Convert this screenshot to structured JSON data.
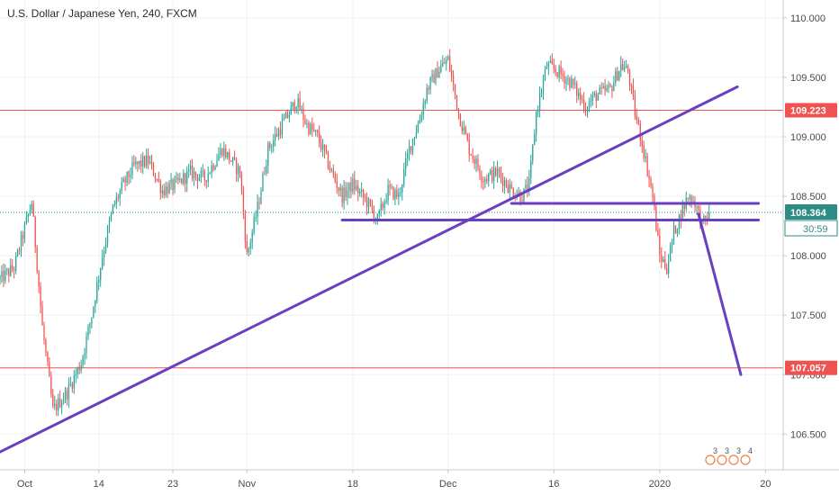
{
  "chart_data": {
    "type": "candlestick",
    "title": "U.S. Dollar / Japanese Yen, 240, FXCM",
    "x_tick_labels": [
      "Oct",
      "14",
      "23",
      "Nov",
      "18",
      "Dec",
      "16",
      "2020",
      "20"
    ],
    "x_tick_positions": [
      7,
      28,
      49,
      70,
      100,
      127,
      157,
      187,
      217
    ],
    "y_tick_labels": [
      "110.000",
      "109.500",
      "109.000",
      "108.500",
      "108.000",
      "107.500",
      "107.000",
      "106.500"
    ],
    "y_tick_values": [
      110.0,
      109.5,
      109.0,
      108.5,
      108.0,
      107.5,
      107.0,
      106.5
    ],
    "ylim": [
      106.2,
      110.15
    ],
    "xlim": [
      0,
      222
    ],
    "grid": true,
    "colors": {
      "up": "#26a69a",
      "down": "#ef5350",
      "trendline": "#6a3fc0",
      "level": "#f05252",
      "price_tag": "#2d8c86",
      "countdown_tag": "#2d8c86",
      "level_tag": "#f05252"
    },
    "horizontal_levels": [
      {
        "value": 109.223,
        "label": "109.223"
      },
      {
        "value": 107.057,
        "label": "107.057"
      }
    ],
    "current_price": {
      "value": 108.364,
      "label": "108.364",
      "countdown": "30:59"
    },
    "drawn_lines": [
      {
        "from": [
          0,
          106.35
        ],
        "to": [
          209,
          109.42
        ]
      },
      {
        "from": [
          97,
          108.3
        ],
        "to": [
          215,
          108.3
        ]
      },
      {
        "from": [
          145,
          108.44
        ],
        "to": [
          215,
          108.44
        ]
      },
      {
        "from": [
          198,
          108.35
        ],
        "to": [
          210,
          107.0
        ]
      }
    ],
    "events": [
      "3",
      "3",
      "3",
      "4"
    ],
    "anchors": [
      [
        0,
        107.8
      ],
      [
        4,
        107.9
      ],
      [
        9,
        108.45
      ],
      [
        12,
        107.4
      ],
      [
        15,
        106.7
      ],
      [
        19,
        106.85
      ],
      [
        23,
        107.1
      ],
      [
        26,
        107.5
      ],
      [
        29,
        108.0
      ],
      [
        32,
        108.4
      ],
      [
        35,
        108.6
      ],
      [
        38,
        108.75
      ],
      [
        42,
        108.8
      ],
      [
        46,
        108.55
      ],
      [
        50,
        108.6
      ],
      [
        54,
        108.7
      ],
      [
        58,
        108.65
      ],
      [
        63,
        108.9
      ],
      [
        68,
        108.7
      ],
      [
        70,
        108.0
      ],
      [
        73,
        108.4
      ],
      [
        76,
        108.9
      ],
      [
        80,
        109.1
      ],
      [
        84,
        109.3
      ],
      [
        87,
        109.1
      ],
      [
        90,
        109.0
      ],
      [
        94,
        108.7
      ],
      [
        97,
        108.5
      ],
      [
        100,
        108.6
      ],
      [
        104,
        108.45
      ],
      [
        107,
        108.3
      ],
      [
        110,
        108.55
      ],
      [
        113,
        108.5
      ],
      [
        116,
        108.9
      ],
      [
        119,
        109.15
      ],
      [
        121,
        109.4
      ],
      [
        124,
        109.55
      ],
      [
        127,
        109.65
      ],
      [
        130,
        109.2
      ],
      [
        133,
        108.9
      ],
      [
        137,
        108.65
      ],
      [
        141,
        108.7
      ],
      [
        145,
        108.55
      ],
      [
        148,
        108.5
      ],
      [
        150,
        108.6
      ],
      [
        152,
        109.2
      ],
      [
        155,
        109.6
      ],
      [
        158,
        109.55
      ],
      [
        162,
        109.45
      ],
      [
        166,
        109.25
      ],
      [
        169,
        109.35
      ],
      [
        173,
        109.4
      ],
      [
        176,
        109.6
      ],
      [
        178,
        109.55
      ],
      [
        180,
        109.2
      ],
      [
        182,
        108.95
      ],
      [
        185,
        108.5
      ],
      [
        187,
        108.0
      ],
      [
        189,
        107.9
      ],
      [
        191,
        108.2
      ],
      [
        193,
        108.35
      ],
      [
        195,
        108.5
      ],
      [
        197,
        108.45
      ],
      [
        199,
        108.25
      ],
      [
        201,
        108.36
      ]
    ]
  }
}
